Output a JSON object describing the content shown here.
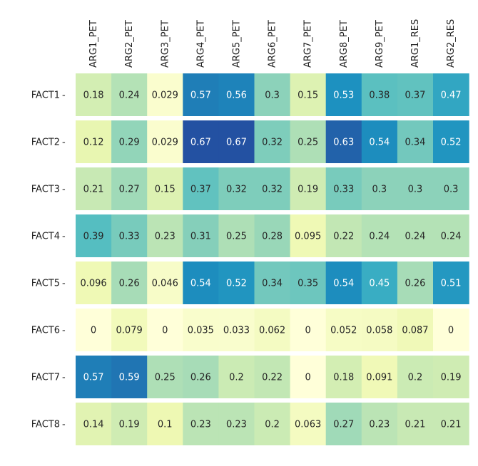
{
  "chart_data": {
    "type": "heatmap",
    "title": "",
    "xlabel": "",
    "ylabel": "",
    "columns": [
      "ARG1_PET",
      "ARG2_PET",
      "ARG3_PET",
      "ARG4_PET",
      "ARG5_PET",
      "ARG6_PET",
      "ARG7_PET",
      "ARG8_PET",
      "ARG9_PET",
      "ARG1_RES",
      "ARG2_RES"
    ],
    "rows": [
      "FACT1",
      "FACT2",
      "FACT3",
      "FACT4",
      "FACT5",
      "FACT6",
      "FACT7",
      "FACT8"
    ],
    "values": [
      [
        0.18,
        0.24,
        0.029,
        0.57,
        0.56,
        0.3,
        0.15,
        0.53,
        0.38,
        0.37,
        0.47
      ],
      [
        0.12,
        0.29,
        0.029,
        0.67,
        0.67,
        0.32,
        0.25,
        0.63,
        0.54,
        0.34,
        0.52
      ],
      [
        0.21,
        0.27,
        0.15,
        0.37,
        0.32,
        0.32,
        0.19,
        0.33,
        0.3,
        0.3,
        0.3
      ],
      [
        0.39,
        0.33,
        0.23,
        0.31,
        0.25,
        0.28,
        0.095,
        0.22,
        0.24,
        0.24,
        0.24
      ],
      [
        0.096,
        0.26,
        0.046,
        0.54,
        0.52,
        0.34,
        0.35,
        0.54,
        0.45,
        0.26,
        0.51
      ],
      [
        0,
        0.079,
        0,
        0.035,
        0.033,
        0.062,
        0,
        0.052,
        0.058,
        0.087,
        0
      ],
      [
        0.57,
        0.59,
        0.25,
        0.26,
        0.2,
        0.22,
        0,
        0.18,
        0.091,
        0.2,
        0.19
      ],
      [
        0.14,
        0.19,
        0.1,
        0.23,
        0.23,
        0.2,
        0.063,
        0.27,
        0.23,
        0.21,
        0.21
      ]
    ],
    "labels": [
      [
        "0.18",
        "0.24",
        "0.029",
        "0.57",
        "0.56",
        "0.3",
        "0.15",
        "0.53",
        "0.38",
        "0.37",
        "0.47"
      ],
      [
        "0.12",
        "0.29",
        "0.029",
        "0.67",
        "0.67",
        "0.32",
        "0.25",
        "0.63",
        "0.54",
        "0.34",
        "0.52"
      ],
      [
        "0.21",
        "0.27",
        "0.15",
        "0.37",
        "0.32",
        "0.32",
        "0.19",
        "0.33",
        "0.3",
        "0.3",
        "0.3"
      ],
      [
        "0.39",
        "0.33",
        "0.23",
        "0.31",
        "0.25",
        "0.28",
        "0.095",
        "0.22",
        "0.24",
        "0.24",
        "0.24"
      ],
      [
        "0.096",
        "0.26",
        "0.046",
        "0.54",
        "0.52",
        "0.34",
        "0.35",
        "0.54",
        "0.45",
        "0.26",
        "0.51"
      ],
      [
        "0",
        "0.079",
        "0",
        "0.035",
        "0.033",
        "0.062",
        "0",
        "0.052",
        "0.058",
        "0.087",
        "0"
      ],
      [
        "0.57",
        "0.59",
        "0.25",
        "0.26",
        "0.2",
        "0.22",
        "0",
        "0.18",
        "0.091",
        "0.2",
        "0.19"
      ],
      [
        "0.14",
        "0.19",
        "0.1",
        "0.23",
        "0.23",
        "0.2",
        "0.063",
        "0.27",
        "0.23",
        "0.21",
        "0.21"
      ]
    ],
    "colormap": "YlGnBu",
    "vrange": [
      0,
      0.85
    ],
    "grid": false,
    "legend": "none"
  }
}
